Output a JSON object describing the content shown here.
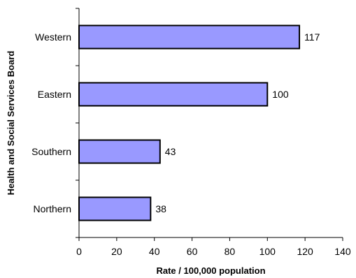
{
  "chart_data": {
    "type": "bar",
    "orientation": "horizontal",
    "categories": [
      "Western",
      "Eastern",
      "Southern",
      "Northern"
    ],
    "values": [
      117,
      100,
      43,
      38
    ],
    "data_labels": [
      "117",
      "100",
      "43",
      "38"
    ],
    "title": "",
    "xlabel": "Rate / 100,000 population",
    "ylabel": "Health and Social Services Board",
    "xlim": [
      0,
      140
    ],
    "xticks": [
      0,
      20,
      40,
      60,
      80,
      100,
      120,
      140
    ],
    "xtick_labels": [
      "0",
      "20",
      "40",
      "60",
      "80",
      "100",
      "120",
      "140"
    ],
    "grid": false,
    "legend": "none",
    "bar_color": "#9999ff",
    "bar_edge_color": "#000000"
  }
}
